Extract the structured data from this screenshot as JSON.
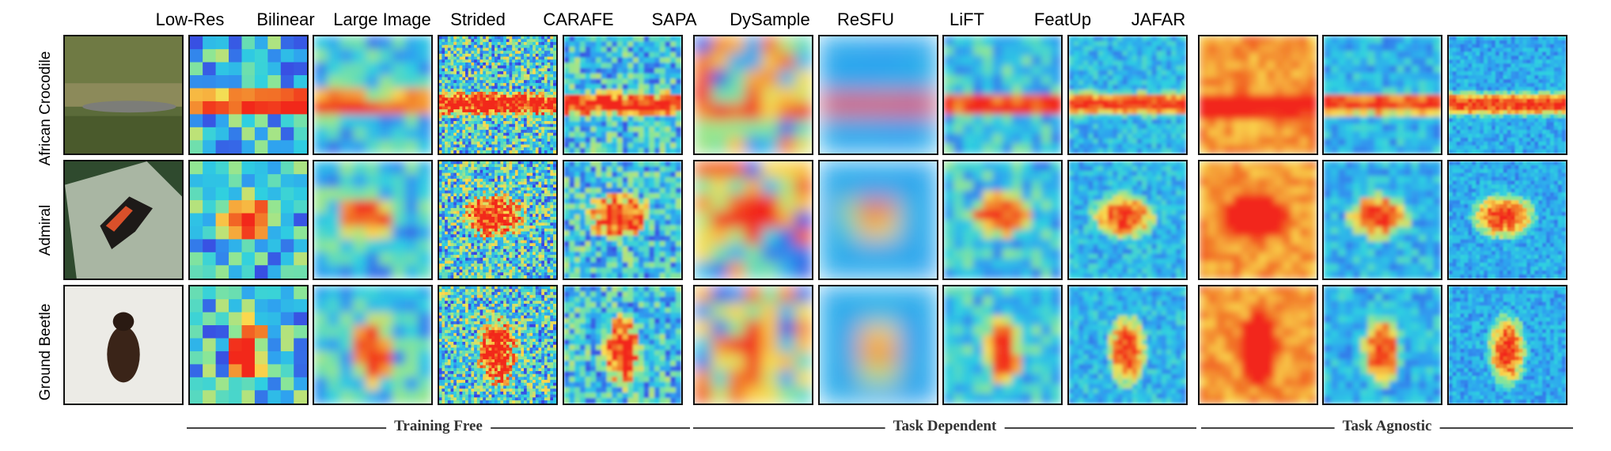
{
  "columns": [
    {
      "key": "input",
      "label": ""
    },
    {
      "key": "lowres",
      "label": "Low-Res"
    },
    {
      "key": "bilinear",
      "label": "Bilinear"
    },
    {
      "key": "large",
      "label": "Large Image"
    },
    {
      "key": "strided",
      "label": "Strided"
    },
    {
      "key": "carafe",
      "label": "CARAFE"
    },
    {
      "key": "sapa",
      "label": "SAPA"
    },
    {
      "key": "dysample",
      "label": "DySample"
    },
    {
      "key": "resfu",
      "label": "ReSFU"
    },
    {
      "key": "lift",
      "label": "LiFT"
    },
    {
      "key": "featup",
      "label": "FeatUp"
    },
    {
      "key": "jafar",
      "label": "JAFAR"
    }
  ],
  "rows": [
    {
      "key": "crocodile",
      "label": "African Crocodile"
    },
    {
      "key": "admiral",
      "label": "Admiral"
    },
    {
      "key": "beetle",
      "label": "Ground Beetle"
    }
  ],
  "groups": [
    {
      "label": "Training Free"
    },
    {
      "label": "Task Dependent"
    },
    {
      "label": "Task Agnostic"
    }
  ],
  "colors": {
    "map_low": "#3a3fe0",
    "map_mid": "#2fd0e0",
    "map_high": "#f2281a",
    "border": "#111111"
  }
}
